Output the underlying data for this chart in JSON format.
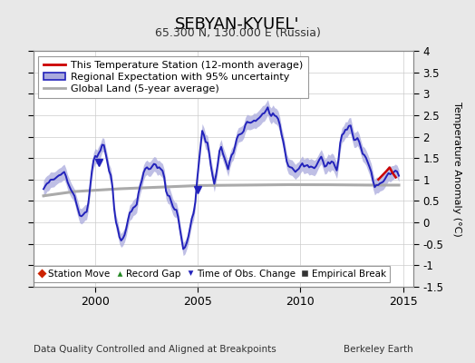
{
  "title": "SEBYAN-KYUEL'",
  "subtitle": "65.300 N, 130.000 E (Russia)",
  "ylabel": "Temperature Anomaly (°C)",
  "footer_left": "Data Quality Controlled and Aligned at Breakpoints",
  "footer_right": "Berkeley Earth",
  "ylim": [
    -1.5,
    4.0
  ],
  "xlim_start": 1997.0,
  "xlim_end": 2015.5,
  "xticks": [
    2000,
    2005,
    2010,
    2015
  ],
  "yticks": [
    -1.5,
    -1.0,
    -0.5,
    0.0,
    0.5,
    1.0,
    1.5,
    2.0,
    2.5,
    3.0,
    3.5,
    4.0
  ],
  "regional_color": "#2222bb",
  "regional_fill_color": "#aaaadd",
  "station_color": "#cc0000",
  "global_color": "#aaaaaa",
  "background_color": "#e8e8e8",
  "plot_bg_color": "#ffffff",
  "title_fontsize": 13,
  "subtitle_fontsize": 9,
  "legend_fontsize": 8,
  "footer_fontsize": 7.5,
  "tobs_markers": [
    2000.2,
    2005.0
  ],
  "key_times": [
    1997.5,
    1998.0,
    1998.5,
    1999.0,
    1999.3,
    1999.6,
    2000.0,
    2000.4,
    2000.8,
    2001.0,
    2001.3,
    2001.6,
    2002.0,
    2002.4,
    2002.8,
    2003.0,
    2003.3,
    2003.6,
    2004.0,
    2004.3,
    2004.6,
    2004.9,
    2005.2,
    2005.5,
    2005.8,
    2006.1,
    2006.5,
    2007.0,
    2007.5,
    2008.0,
    2008.4,
    2008.7,
    2009.0,
    2009.4,
    2009.8,
    2010.0,
    2010.3,
    2010.6,
    2011.0,
    2011.4,
    2011.8,
    2012.0,
    2012.4,
    2012.8,
    2013.0,
    2013.3,
    2013.6,
    2013.9,
    2014.0,
    2014.3,
    2014.6,
    2014.8
  ],
  "key_vals": [
    0.8,
    1.1,
    1.15,
    0.55,
    0.15,
    0.3,
    1.55,
    1.9,
    1.0,
    0.05,
    -0.5,
    0.0,
    0.4,
    1.2,
    1.35,
    1.4,
    1.1,
    0.6,
    0.25,
    -0.65,
    -0.3,
    0.5,
    2.15,
    1.85,
    0.85,
    1.8,
    1.2,
    2.0,
    2.3,
    2.45,
    2.65,
    2.55,
    2.3,
    1.35,
    1.25,
    1.3,
    1.35,
    1.2,
    1.5,
    1.45,
    1.2,
    2.1,
    2.25,
    1.9,
    1.7,
    1.4,
    0.85,
    0.9,
    0.95,
    1.1,
    1.25,
    1.1
  ],
  "global_key_t": [
    1997.5,
    1999.0,
    2001.0,
    2003.0,
    2005.0,
    2007.0,
    2009.0,
    2011.0,
    2013.0,
    2014.8
  ],
  "global_key_v": [
    0.62,
    0.72,
    0.78,
    0.82,
    0.86,
    0.87,
    0.88,
    0.88,
    0.87,
    0.87
  ],
  "station_t": [
    2013.8,
    2014.0,
    2014.2,
    2014.35,
    2014.5,
    2014.65
  ],
  "station_v": [
    1.0,
    1.1,
    1.2,
    1.28,
    1.15,
    1.05
  ]
}
